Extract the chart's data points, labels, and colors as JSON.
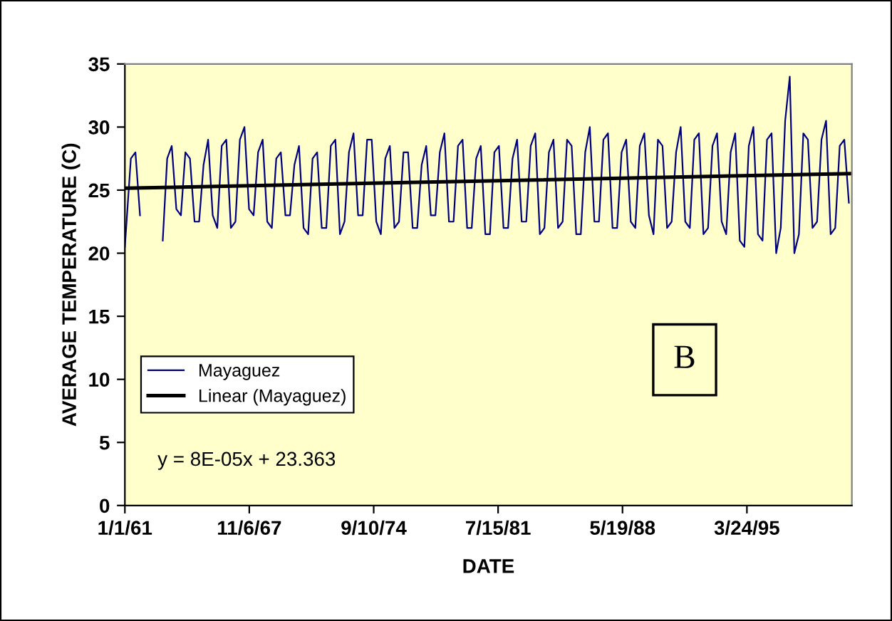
{
  "chart_data": {
    "type": "line",
    "xlabel": "DATE",
    "ylabel": "AVERAGE TEMPERATURE (C)",
    "xlim": [
      "1961-01-01",
      "2000-12-31"
    ],
    "ylim": [
      0,
      35
    ],
    "yticks": [
      0,
      5,
      10,
      15,
      20,
      25,
      30,
      35
    ],
    "xticks": [
      {
        "value": "1961-01-01",
        "label": "1/1/61"
      },
      {
        "value": "1967-11-06",
        "label": "11/6/67"
      },
      {
        "value": "1974-09-10",
        "label": "9/10/74"
      },
      {
        "value": "1981-07-15",
        "label": "7/15/81"
      },
      {
        "value": "1988-05-19",
        "label": "5/19/88"
      },
      {
        "value": "1995-03-24",
        "label": "3/24/95"
      }
    ],
    "grid": false,
    "legend": "bottom left",
    "annotations": [
      "y = 8E-05x + 23.363",
      "B"
    ],
    "series": [
      {
        "name": "Mayaguez",
        "color": "#000080",
        "x": [
          "1961-01",
          "1961-05",
          "1961-08",
          "1961-11",
          "1962-06",
          "1963-02",
          "1963-05",
          "1963-08",
          "1963-11",
          "1964-02",
          "1964-05",
          "1964-08",
          "1964-11",
          "1965-02",
          "1965-05",
          "1965-08",
          "1965-11",
          "1966-02",
          "1966-05",
          "1966-08",
          "1966-11",
          "1967-02",
          "1967-05",
          "1967-08",
          "1967-11",
          "1968-02",
          "1968-05",
          "1968-08",
          "1968-11",
          "1969-02",
          "1969-05",
          "1969-08",
          "1969-11",
          "1970-02",
          "1970-05",
          "1970-08",
          "1970-11",
          "1971-02",
          "1971-05",
          "1971-08",
          "1971-11",
          "1972-02",
          "1972-05",
          "1972-08",
          "1972-11",
          "1973-02",
          "1973-05",
          "1973-08",
          "1973-11",
          "1974-02",
          "1974-05",
          "1974-08",
          "1974-11",
          "1975-02",
          "1975-05",
          "1975-08",
          "1975-11",
          "1976-02",
          "1976-05",
          "1976-08",
          "1976-11",
          "1977-02",
          "1977-05",
          "1977-08",
          "1977-11",
          "1978-02",
          "1978-05",
          "1978-08",
          "1978-11",
          "1979-02",
          "1979-05",
          "1979-08",
          "1979-11",
          "1980-02",
          "1980-05",
          "1980-08",
          "1980-11",
          "1981-02",
          "1981-05",
          "1981-08",
          "1981-11",
          "1982-02",
          "1982-05",
          "1982-08",
          "1982-11",
          "1983-02",
          "1983-05",
          "1983-08",
          "1983-11",
          "1984-02",
          "1984-05",
          "1984-08",
          "1984-11",
          "1985-02",
          "1985-05",
          "1985-08",
          "1985-11",
          "1986-02",
          "1986-05",
          "1986-08",
          "1986-11",
          "1987-02",
          "1987-05",
          "1987-08",
          "1987-11",
          "1988-02",
          "1988-05",
          "1988-08",
          "1988-11",
          "1989-02",
          "1989-05",
          "1989-08",
          "1989-11",
          "1990-02",
          "1990-05",
          "1990-08",
          "1990-11",
          "1991-02",
          "1991-05",
          "1991-08",
          "1991-11",
          "1992-02",
          "1992-05",
          "1992-08",
          "1992-11",
          "1993-02",
          "1993-05",
          "1993-08",
          "1993-11",
          "1994-02",
          "1994-05",
          "1994-08",
          "1994-11",
          "1995-02",
          "1995-05",
          "1995-08",
          "1995-11",
          "1996-02",
          "1996-05",
          "1996-08",
          "1996-11",
          "1997-02",
          "1997-05",
          "1997-08",
          "1997-11",
          "1998-02",
          "1998-05",
          "1998-08",
          "1998-11",
          "1999-02",
          "1999-05",
          "1999-08",
          "1999-11",
          "2000-02",
          "2000-05",
          "2000-08",
          "2000-11"
        ],
        "values": [
          20.5,
          27.5,
          28,
          23,
          null,
          21,
          27.5,
          28.5,
          23.5,
          23,
          28,
          27.5,
          22.5,
          22.5,
          27,
          29,
          23,
          22,
          28.5,
          29,
          22,
          22.5,
          29,
          30,
          23.5,
          23,
          28,
          29,
          22.5,
          22,
          27.5,
          28,
          23,
          23,
          27,
          28.5,
          22,
          21.5,
          27.5,
          28,
          22,
          22,
          28.5,
          29,
          21.5,
          22.5,
          28,
          29.5,
          23,
          23,
          29,
          29,
          22.5,
          21.5,
          27.5,
          28.5,
          22,
          22.5,
          28,
          28,
          22,
          22,
          27,
          28.5,
          23,
          23,
          28,
          29.5,
          22.5,
          22.5,
          28.5,
          29,
          22,
          22,
          27.5,
          28.5,
          21.5,
          21.5,
          28,
          28.5,
          22,
          22,
          27.5,
          29,
          22.5,
          22.5,
          28.5,
          29.5,
          21.5,
          22,
          28,
          29,
          22,
          22.5,
          29,
          28.5,
          21.5,
          21.5,
          28,
          30,
          22.5,
          22.5,
          29,
          29.5,
          22,
          22,
          28,
          29,
          22.5,
          22,
          28.5,
          29.5,
          23,
          21.5,
          29,
          28.5,
          22,
          22.5,
          28,
          30,
          22.5,
          22,
          29,
          29.5,
          21.5,
          22,
          28.5,
          29.5,
          22.5,
          21.5,
          28,
          29.5,
          21,
          20.5,
          28.5,
          30,
          21.5,
          21,
          29,
          29.5,
          20,
          22,
          30.5,
          34,
          20,
          21.5,
          29.5,
          29,
          22,
          22.5,
          29,
          30.5,
          21.5,
          22,
          28.5,
          29,
          24
        ]
      },
      {
        "name": "Linear (Mayaguez)",
        "color": "#000000",
        "x": [
          "1961-01-01",
          "2000-12-31"
        ],
        "values": [
          25.15,
          26.31
        ]
      }
    ]
  }
}
